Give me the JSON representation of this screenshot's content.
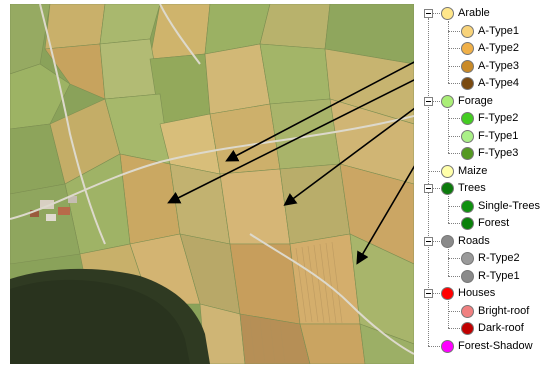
{
  "legend": {
    "groups": [
      {
        "label": "Arable",
        "color": "#ffe68a",
        "expanded": true,
        "children": [
          {
            "label": "A-Type1",
            "color": "#f8d37a"
          },
          {
            "label": "A-Type2",
            "color": "#f0b048"
          },
          {
            "label": "A-Type3",
            "color": "#c98a28"
          },
          {
            "label": "A-Type4",
            "color": "#7a4a10"
          }
        ]
      },
      {
        "label": "Forage",
        "color": "#aaee77",
        "expanded": true,
        "children": [
          {
            "label": "F-Type2",
            "color": "#44cc22"
          },
          {
            "label": "F-Type1",
            "color": "#aaf088"
          },
          {
            "label": "F-Type3",
            "color": "#559922"
          }
        ]
      },
      {
        "label": "Maize",
        "color": "#ffffaa",
        "expanded": false,
        "children": []
      },
      {
        "label": "Trees",
        "color": "#0c7a0c",
        "expanded": true,
        "children": [
          {
            "label": "Single-Trees",
            "color": "#109010"
          },
          {
            "label": "Forest",
            "color": "#0a800a"
          }
        ]
      },
      {
        "label": "Roads",
        "color": "#8a8a8a",
        "expanded": true,
        "children": [
          {
            "label": "R-Type2",
            "color": "#9a9a9a"
          },
          {
            "label": "R-Type1",
            "color": "#8a8a8a"
          }
        ]
      },
      {
        "label": "Houses",
        "color": "#ff0000",
        "expanded": true,
        "children": [
          {
            "label": "Bright-roof",
            "color": "#f08080"
          },
          {
            "label": "Dark-roof",
            "color": "#c00000"
          }
        ]
      },
      {
        "label": "Forest-Shadow",
        "color": "#ff00ff",
        "expanded": false,
        "children": []
      }
    ]
  }
}
